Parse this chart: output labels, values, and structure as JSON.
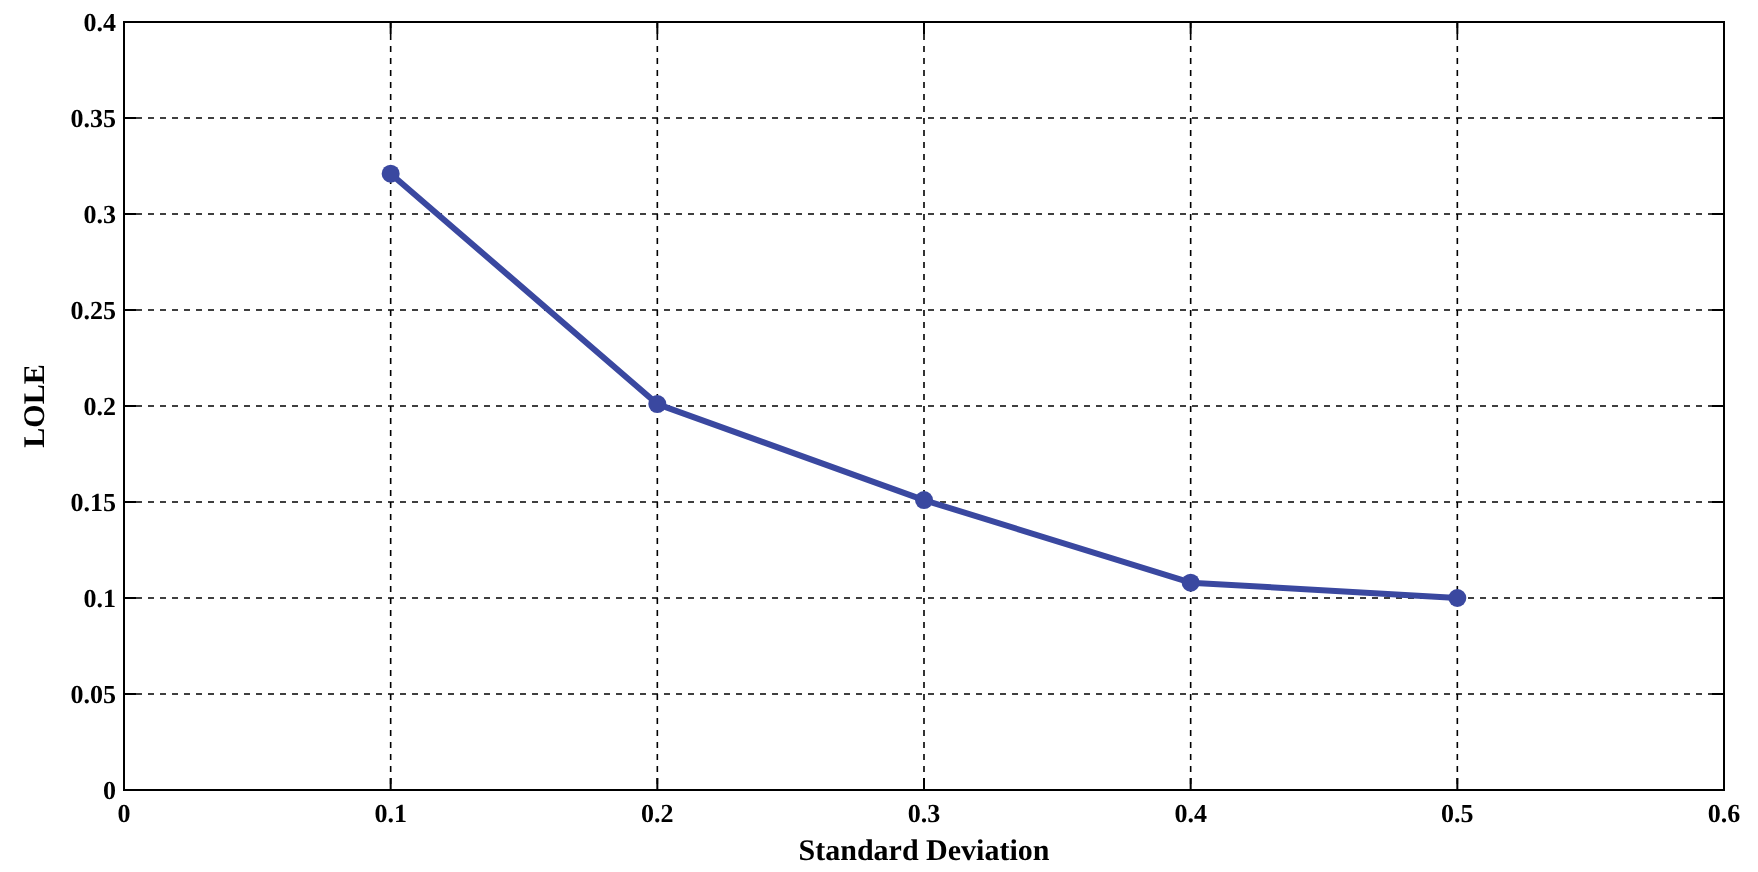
{
  "chart_data": {
    "type": "line",
    "xlabel": "Standard Deviation",
    "ylabel": "LOLE",
    "x": [
      0.1,
      0.2,
      0.3,
      0.4,
      0.5
    ],
    "series": [
      {
        "color": "#3a48a0",
        "values": [
          0.321,
          0.201,
          0.151,
          0.108,
          0.1
        ]
      }
    ],
    "xlim": [
      0,
      0.6
    ],
    "xticks": [
      0,
      0.1,
      0.2,
      0.3,
      0.4,
      0.5,
      0.6
    ],
    "ylim": [
      0,
      0.4
    ],
    "yticks": [
      0,
      0.05,
      0.1,
      0.15,
      0.2,
      0.25,
      0.3,
      0.35,
      0.4
    ],
    "grid": true,
    "marker": "circle",
    "line_style": "solid"
  }
}
